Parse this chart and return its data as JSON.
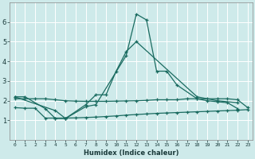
{
  "xlabel": "Humidex (Indice chaleur)",
  "background_color": "#ceeaea",
  "grid_color": "#b8d8d8",
  "line_color": "#1a6b60",
  "xlim": [
    -0.5,
    23.5
  ],
  "ylim": [
    0,
    7
  ],
  "yticks": [
    1,
    2,
    3,
    4,
    5,
    6
  ],
  "line1_x": [
    0,
    1,
    3,
    4,
    5,
    7,
    8,
    11,
    12,
    13,
    14,
    15,
    16,
    18,
    19,
    20,
    21,
    22
  ],
  "line1_y": [
    2.2,
    2.2,
    1.6,
    1.1,
    1.1,
    1.7,
    1.8,
    4.3,
    6.4,
    6.1,
    3.5,
    3.5,
    2.8,
    2.1,
    2.0,
    1.95,
    1.9,
    1.6
  ],
  "line2_x": [
    0,
    4,
    5,
    7,
    8,
    9,
    10,
    11,
    12,
    18,
    20,
    22
  ],
  "line2_y": [
    2.2,
    1.5,
    1.1,
    1.8,
    2.3,
    2.3,
    3.5,
    4.5,
    5.0,
    2.2,
    2.0,
    1.9
  ],
  "line3_x": [
    0,
    1,
    2,
    3,
    4,
    5,
    6,
    7,
    8,
    9,
    10,
    11,
    12,
    13,
    14,
    15,
    16,
    17,
    18,
    19,
    20,
    21,
    22,
    23
  ],
  "line3_y": [
    2.1,
    2.1,
    2.1,
    2.1,
    2.05,
    2.0,
    1.98,
    1.97,
    1.97,
    1.97,
    1.98,
    1.99,
    2.0,
    2.02,
    2.05,
    2.05,
    2.05,
    2.1,
    2.1,
    2.1,
    2.1,
    2.1,
    2.05,
    1.65
  ],
  "line4_x": [
    0,
    1,
    2,
    3,
    4,
    5,
    6,
    7,
    8,
    9,
    10,
    11,
    12,
    13,
    14,
    15,
    16,
    17,
    18,
    19,
    20,
    21,
    22,
    23
  ],
  "line4_y": [
    1.65,
    1.62,
    1.62,
    1.12,
    1.12,
    1.12,
    1.13,
    1.15,
    1.17,
    1.2,
    1.23,
    1.27,
    1.3,
    1.33,
    1.36,
    1.38,
    1.4,
    1.42,
    1.44,
    1.46,
    1.48,
    1.5,
    1.52,
    1.55
  ]
}
